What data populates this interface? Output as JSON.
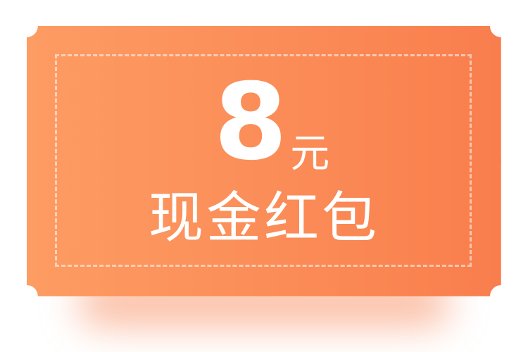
{
  "coupon": {
    "amount": "8",
    "unit": "元",
    "label": "现金红包"
  },
  "colors": {
    "gradient_start": "#fd9c63",
    "gradient_end": "#f97e4d",
    "text": "#ffffff",
    "dashed_border": "#ffffff"
  }
}
